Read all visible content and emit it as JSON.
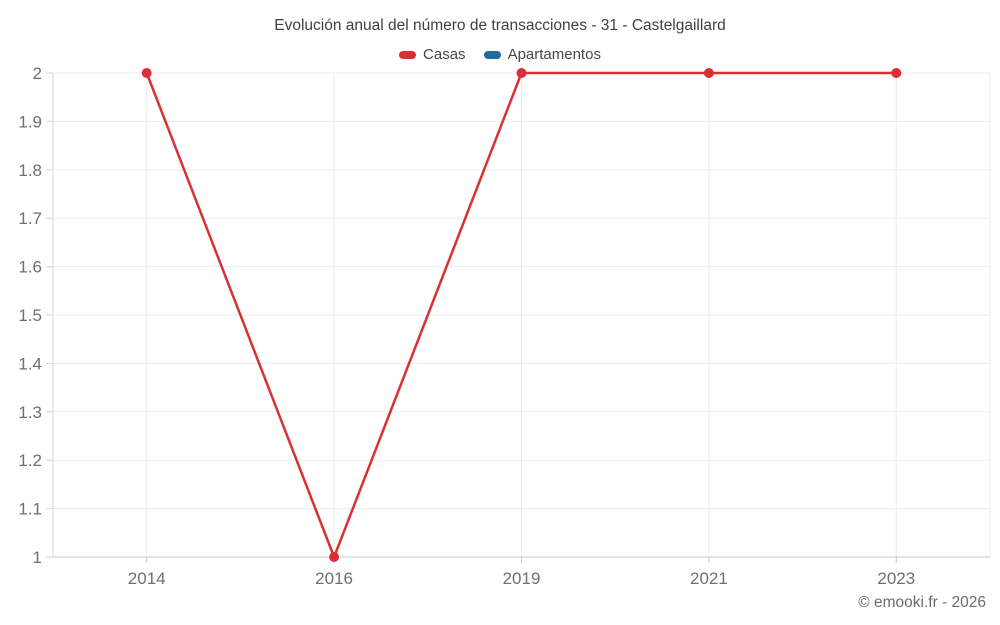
{
  "chart_data": {
    "type": "line",
    "title": "Evolución anual del número de transacciones - 31 - Castelgaillard",
    "categories": [
      "2014",
      "2016",
      "2019",
      "2021",
      "2023"
    ],
    "series": [
      {
        "name": "Casas",
        "color": "#d93035",
        "values": [
          2,
          1,
          2,
          2,
          2
        ]
      },
      {
        "name": "Apartamentos",
        "color": "#1b6d9e",
        "values": []
      }
    ],
    "ylim": [
      1,
      2
    ],
    "yticks": {
      "values": [
        1,
        1.1,
        1.2,
        1.3,
        1.4,
        1.5,
        1.6,
        1.7,
        1.8,
        1.9,
        2
      ],
      "labels": [
        "1",
        "1.1",
        "1.2",
        "1.3",
        "1.4",
        "1.5",
        "1.6",
        "1.7",
        "1.8",
        "1.9",
        "2"
      ]
    },
    "grid": true,
    "legend_position": "top",
    "watermark": "© emooki.fr - 2026"
  }
}
